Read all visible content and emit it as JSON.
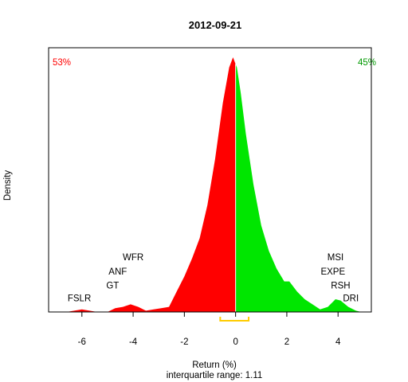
{
  "chart_data": {
    "type": "area",
    "title": "2012-09-21",
    "xlabel": "Return (%)",
    "subtitle": "interquartile range: 1.11",
    "ylabel": "Density",
    "xlim": [
      -7.3,
      5.3
    ],
    "ylim": [
      0,
      1.0
    ],
    "x_ticks": [
      -6,
      -4,
      -2,
      0,
      2,
      4
    ],
    "x_tick_labels": [
      "-6",
      "-4",
      "-2",
      "0",
      "2",
      "4"
    ],
    "split_at": 0,
    "pct_negative": "53%",
    "pct_positive": "45%",
    "colors": {
      "negative": "#ff0000",
      "positive": "#00e600",
      "iqr": "#ffcc00",
      "baseline": "#bebebe"
    },
    "iqr_range": [
      -0.6,
      0.51
    ],
    "density_points": [
      [
        -6.6,
        0.0
      ],
      [
        -6.3,
        0.005
      ],
      [
        -6.0,
        0.01
      ],
      [
        -5.7,
        0.005
      ],
      [
        -5.4,
        0.0
      ],
      [
        -5.0,
        0.0
      ],
      [
        -4.7,
        0.015
      ],
      [
        -4.4,
        0.02
      ],
      [
        -4.1,
        0.03
      ],
      [
        -3.8,
        0.02
      ],
      [
        -3.5,
        0.005
      ],
      [
        -3.2,
        0.01
      ],
      [
        -2.9,
        0.015
      ],
      [
        -2.6,
        0.02
      ],
      [
        -2.3,
        0.08
      ],
      [
        -2.0,
        0.14
      ],
      [
        -1.7,
        0.21
      ],
      [
        -1.4,
        0.29
      ],
      [
        -1.1,
        0.42
      ],
      [
        -0.8,
        0.6
      ],
      [
        -0.5,
        0.82
      ],
      [
        -0.25,
        0.96
      ],
      [
        -0.1,
        1.0
      ],
      [
        0.05,
        0.96
      ],
      [
        0.2,
        0.86
      ],
      [
        0.4,
        0.7
      ],
      [
        0.7,
        0.5
      ],
      [
        1.0,
        0.34
      ],
      [
        1.3,
        0.24
      ],
      [
        1.6,
        0.17
      ],
      [
        1.9,
        0.12
      ],
      [
        2.1,
        0.12
      ],
      [
        2.4,
        0.08
      ],
      [
        2.7,
        0.05
      ],
      [
        3.0,
        0.03
      ],
      [
        3.3,
        0.01
      ],
      [
        3.6,
        0.02
      ],
      [
        3.9,
        0.05
      ],
      [
        4.1,
        0.045
      ],
      [
        4.4,
        0.02
      ],
      [
        4.7,
        0.005
      ],
      [
        4.9,
        0.0
      ]
    ],
    "annotations": [
      {
        "text": "FSLR",
        "x": -6.1,
        "y": 0.055
      },
      {
        "text": "GT",
        "x": -4.8,
        "y": 0.105
      },
      {
        "text": "ANF",
        "x": -4.6,
        "y": 0.16
      },
      {
        "text": "WFR",
        "x": -4.0,
        "y": 0.215
      },
      {
        "text": "MSI",
        "x": 3.9,
        "y": 0.215
      },
      {
        "text": "EXPE",
        "x": 3.8,
        "y": 0.16
      },
      {
        "text": "RSH",
        "x": 4.1,
        "y": 0.105
      },
      {
        "text": "DRI",
        "x": 4.5,
        "y": 0.055
      }
    ]
  }
}
